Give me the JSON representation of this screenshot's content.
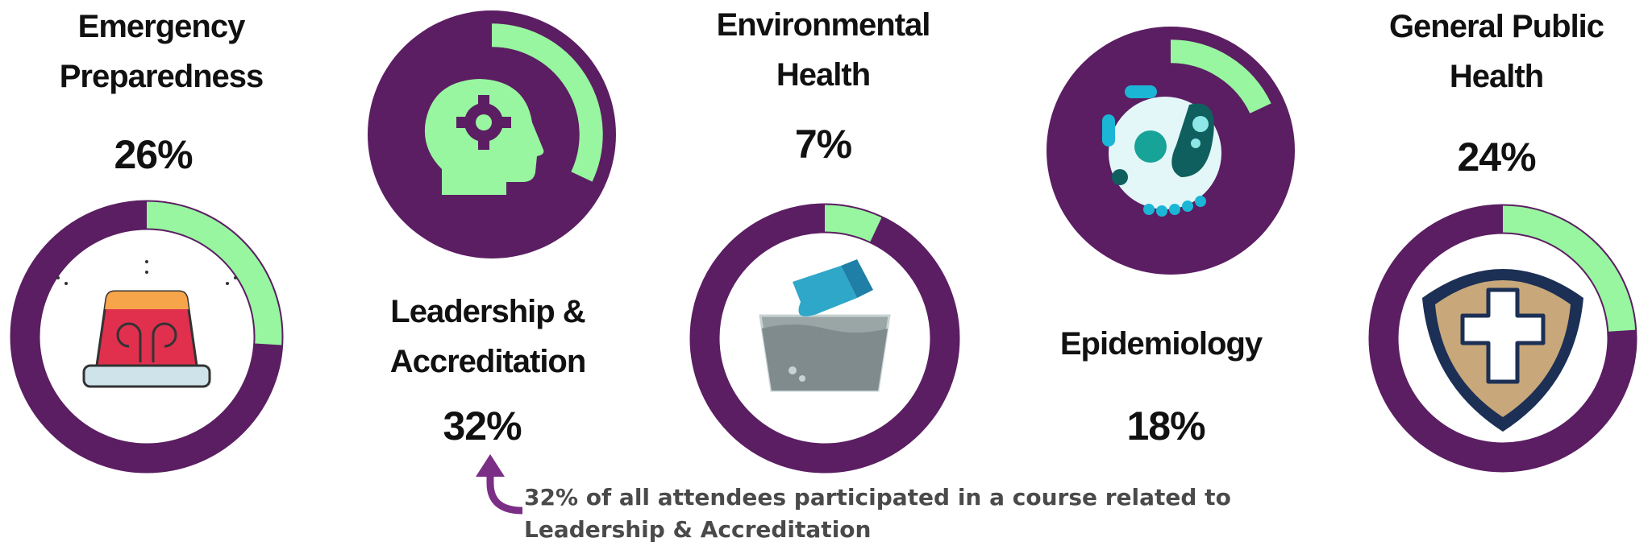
{
  "chart_data": [
    {
      "type": "donut",
      "title": "Emergency Preparedness",
      "values": [
        26
      ],
      "value_labels": [
        "26%"
      ],
      "color": "#98f5a0",
      "track_color": "#5b1e62"
    },
    {
      "type": "radial",
      "title": "Leadership & Accreditation",
      "values": [
        32
      ],
      "value_labels": [
        "32%"
      ],
      "color": "#98f5a0",
      "track_color": "#5b1e62",
      "annotation": "32% of all attendees participated in a course related to Leadership & Accreditation"
    },
    {
      "type": "donut",
      "title": "Environmental Health",
      "values": [
        7
      ],
      "value_labels": [
        "7%"
      ],
      "color": "#98f5a0",
      "track_color": "#5b1e62"
    },
    {
      "type": "radial",
      "title": "Epidemiology",
      "values": [
        18
      ],
      "value_labels": [
        "18%"
      ],
      "color": "#98f5a0",
      "track_color": "#5b1e62"
    },
    {
      "type": "donut",
      "title": "General Public Health",
      "values": [
        24
      ],
      "value_labels": [
        "24%"
      ],
      "color": "#98f5a0",
      "track_color": "#5b1e62"
    }
  ]
}
